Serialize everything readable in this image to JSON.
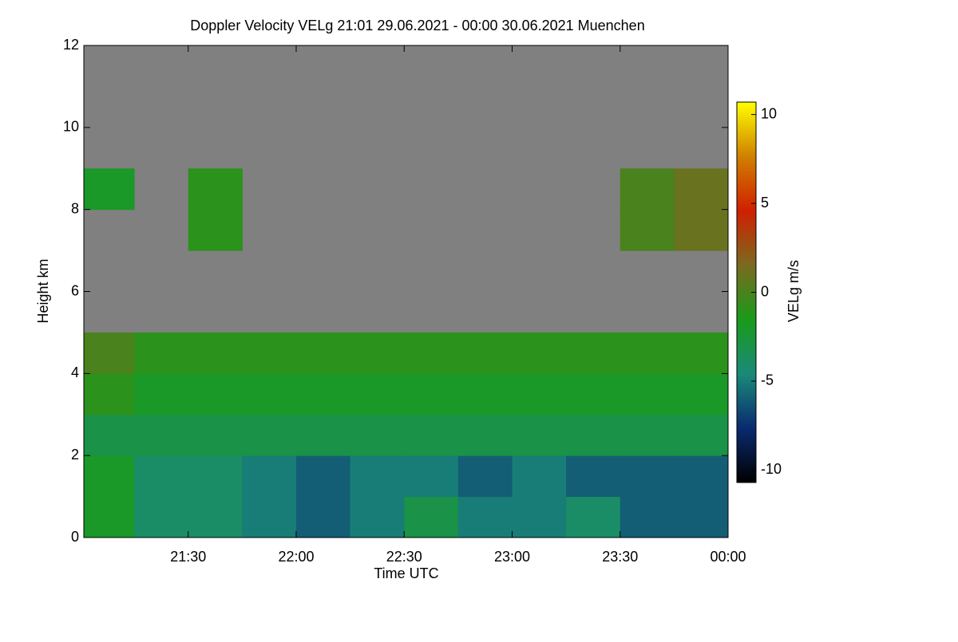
{
  "chart_data": {
    "type": "heatmap",
    "title": "Doppler Velocity VELg   21:01 29.06.2021 - 00:00 30.06.2021 Muenchen",
    "x_label": "Time UTC",
    "y_label": "Height km",
    "colorbar_label": "VELg m/s",
    "xlim": [
      21.0167,
      24.0
    ],
    "xticks": [
      {
        "value": 21.5,
        "label": "21:30"
      },
      {
        "value": 22.0,
        "label": "22:00"
      },
      {
        "value": 22.5,
        "label": "22:30"
      },
      {
        "value": 23.0,
        "label": "23:00"
      },
      {
        "value": 23.5,
        "label": "23:30"
      },
      {
        "value": 24.0,
        "label": "00:00"
      }
    ],
    "ylim": [
      0,
      12
    ],
    "yticks": [
      0,
      2,
      4,
      6,
      8,
      10,
      12
    ],
    "clim": [
      -10.7,
      10.7
    ],
    "cticks": [
      -10,
      -5,
      0,
      5,
      10
    ],
    "colormap": [
      "#000000",
      "#0a2a70",
      "#1a8a78",
      "#1a9a1a",
      "#7a6a20",
      "#d02000",
      "#d08000",
      "#ffff00"
    ],
    "background_color": "#808080",
    "x": [
      21.125,
      21.375,
      21.625,
      21.875,
      22.125,
      22.375,
      22.625,
      22.875,
      23.125,
      23.375,
      23.625,
      23.875
    ],
    "y": [
      0.5,
      1.5,
      2.5,
      3.5,
      4.5,
      5.5,
      6.5,
      7.5,
      8.5,
      9.5,
      10.5,
      11.5
    ],
    "z": [
      [
        -2,
        -4,
        -4,
        -5,
        -6,
        -5,
        -3,
        -5,
        -5,
        -4,
        -6,
        -6
      ],
      [
        -2,
        -4,
        -4,
        -5,
        -6,
        -5,
        -5,
        -6,
        -5,
        -6,
        -6,
        -6
      ],
      [
        -3,
        -3,
        -3,
        -3,
        -3,
        -3,
        -3,
        -3,
        -3,
        -3,
        -3,
        -3
      ],
      [
        -1,
        -2,
        -2,
        -2,
        -2,
        -2,
        -2,
        -2,
        -2,
        -2,
        -2,
        -2
      ],
      [
        0,
        -1,
        -1,
        -1,
        -1,
        -1,
        -1,
        -1,
        -1,
        -1,
        -1,
        -1
      ],
      [
        null,
        null,
        null,
        null,
        null,
        null,
        null,
        null,
        null,
        null,
        null,
        null
      ],
      [
        null,
        null,
        null,
        null,
        null,
        null,
        null,
        null,
        null,
        null,
        null,
        null
      ],
      [
        null,
        null,
        -1,
        null,
        null,
        null,
        null,
        null,
        null,
        null,
        0,
        1
      ],
      [
        -2,
        null,
        -1,
        null,
        null,
        null,
        null,
        null,
        null,
        null,
        0,
        1
      ],
      [
        null,
        null,
        null,
        null,
        null,
        null,
        null,
        null,
        null,
        null,
        null,
        null
      ],
      [
        null,
        null,
        null,
        null,
        null,
        null,
        null,
        null,
        null,
        null,
        null,
        null
      ],
      [
        null,
        null,
        null,
        null,
        null,
        null,
        null,
        null,
        null,
        null,
        null,
        null
      ]
    ]
  }
}
